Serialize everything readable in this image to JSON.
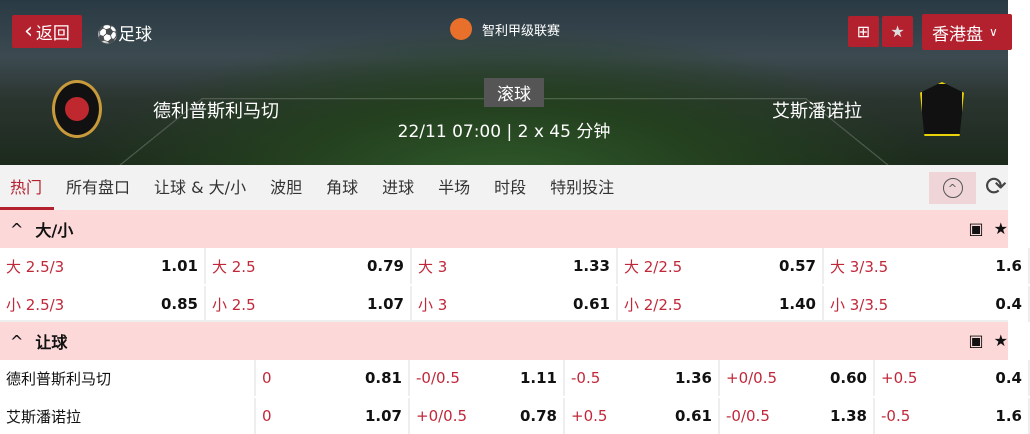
{
  "header": {
    "back_label": "返回",
    "sport_label": "足球",
    "league": "智利甲级联赛",
    "live_badge": "滚球",
    "datetime": "22/11 07:00 | 2 x 45 分钟",
    "home_team": "德利普斯利马切",
    "away_team": "艾斯潘诺拉",
    "market_type": "香港盘"
  },
  "tabs": [
    "热门",
    "所有盘口",
    "让球 & 大/小",
    "波胆",
    "角球",
    "进球",
    "半场",
    "时段",
    "特别投注"
  ],
  "colors": {
    "accent": "#b3202e",
    "section_bg": "#fdd8d8",
    "odds_label": "#c0283a"
  },
  "over_under": {
    "title": "大/小",
    "rows": [
      [
        {
          "l": "大 2.5/3",
          "v": "1.01"
        },
        {
          "l": "大 2.5",
          "v": "0.79"
        },
        {
          "l": "大 3",
          "v": "1.33"
        },
        {
          "l": "大 2/2.5",
          "v": "0.57"
        },
        {
          "l": "大 3/3.5",
          "v": "1.6"
        }
      ],
      [
        {
          "l": "小 2.5/3",
          "v": "0.85"
        },
        {
          "l": "小 2.5",
          "v": "1.07"
        },
        {
          "l": "小 3",
          "v": "0.61"
        },
        {
          "l": "小 2/2.5",
          "v": "1.40"
        },
        {
          "l": "小 3/3.5",
          "v": "0.4"
        }
      ]
    ]
  },
  "handicap": {
    "title": "让球",
    "rows": [
      {
        "team": "德利普斯利马切",
        "cells": [
          {
            "l": "0",
            "v": "0.81"
          },
          {
            "l": "-0/0.5",
            "v": "1.11"
          },
          {
            "l": "-0.5",
            "v": "1.36"
          },
          {
            "l": "+0/0.5",
            "v": "0.60"
          },
          {
            "l": "+0.5",
            "v": "0.4"
          }
        ]
      },
      {
        "team": "艾斯潘诺拉",
        "cells": [
          {
            "l": "0",
            "v": "1.07"
          },
          {
            "l": "+0/0.5",
            "v": "0.78"
          },
          {
            "l": "+0.5",
            "v": "0.61"
          },
          {
            "l": "-0/0.5",
            "v": "1.38"
          },
          {
            "l": "-0.5",
            "v": "1.6"
          }
        ]
      }
    ]
  }
}
